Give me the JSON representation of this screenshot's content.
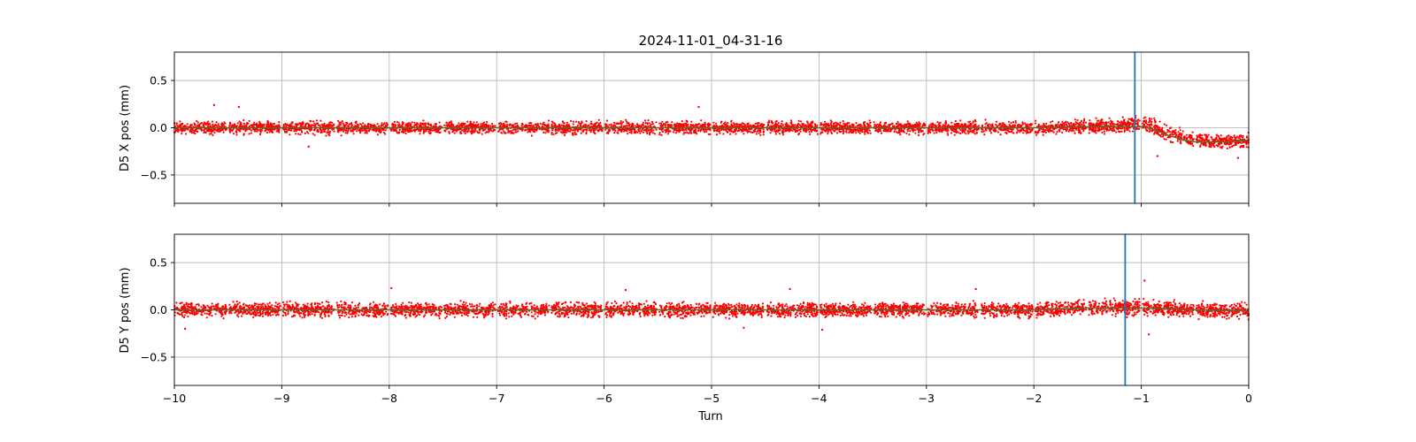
{
  "chart_data": [
    {
      "type": "scatter",
      "title": "2024-11-01_04-31-16",
      "xlabel": "",
      "ylabel": "D5 X pos (mm)",
      "xlim": [
        -10,
        0
      ],
      "ylim": [
        -0.8,
        0.8
      ],
      "grid": true,
      "xticks": [
        -10,
        -9,
        -8,
        -7,
        -6,
        -5,
        -4,
        -3,
        -2,
        -1,
        0
      ],
      "yticks": [
        -0.5,
        0.0,
        0.5
      ],
      "ytick_labels": [
        "−0.5",
        "0.0",
        "0.5"
      ],
      "scatter_color": "#ff0000",
      "trend_color": "#556b2f",
      "vline_color": "#1f77b4",
      "vline_x": -1.06,
      "scatter_envelope": [
        {
          "x": -10.0,
          "center": 0.0,
          "spread": 0.08
        },
        {
          "x": -2.0,
          "center": 0.0,
          "spread": 0.08
        },
        {
          "x": -1.5,
          "center": 0.01,
          "spread": 0.09
        },
        {
          "x": -1.2,
          "center": 0.02,
          "spread": 0.09
        },
        {
          "x": -1.0,
          "center": 0.05,
          "spread": 0.1
        },
        {
          "x": -0.9,
          "center": 0.02,
          "spread": 0.1
        },
        {
          "x": -0.75,
          "center": -0.06,
          "spread": 0.1
        },
        {
          "x": -0.55,
          "center": -0.13,
          "spread": 0.09
        },
        {
          "x": -0.3,
          "center": -0.15,
          "spread": 0.09
        },
        {
          "x": 0.0,
          "center": -0.14,
          "spread": 0.09
        }
      ],
      "trend": [
        {
          "x": -10.0,
          "y": 0.0
        },
        {
          "x": -2.0,
          "y": 0.0
        },
        {
          "x": -1.5,
          "y": 0.01
        },
        {
          "x": -1.0,
          "y": 0.01
        },
        {
          "x": -0.9,
          "y": -0.01
        },
        {
          "x": -0.75,
          "y": -0.08
        },
        {
          "x": -0.6,
          "y": -0.13
        },
        {
          "x": -0.5,
          "y": -0.15
        },
        {
          "x": -0.2,
          "y": -0.15
        },
        {
          "x": 0.0,
          "y": -0.13
        }
      ],
      "outliers": [
        {
          "x": -9.63,
          "y": 0.24
        },
        {
          "x": -9.4,
          "y": 0.22
        },
        {
          "x": -5.12,
          "y": 0.22
        },
        {
          "x": -8.75,
          "y": -0.2
        },
        {
          "x": -0.85,
          "y": -0.3
        },
        {
          "x": -0.1,
          "y": -0.32
        }
      ],
      "gaps": [
        -9.5,
        -9.0,
        -8.5,
        -8.0,
        -7.5,
        -7.0,
        -6.5,
        -6.0,
        -5.5,
        -5.0,
        -4.5,
        -4.0,
        -3.5,
        -3.0,
        -2.5,
        -2.0,
        -1.5,
        -1.0,
        -0.5
      ]
    },
    {
      "type": "scatter",
      "title": "",
      "xlabel": "Turn",
      "ylabel": "D5 Y pos (mm)",
      "xlim": [
        -10,
        0
      ],
      "ylim": [
        -0.8,
        0.8
      ],
      "grid": true,
      "xticks": [
        -10,
        -9,
        -8,
        -7,
        -6,
        -5,
        -4,
        -3,
        -2,
        -1,
        0
      ],
      "xtick_labels": [
        "−10",
        "−9",
        "−8",
        "−7",
        "−6",
        "−5",
        "−4",
        "−3",
        "−2",
        "−1",
        "0"
      ],
      "yticks": [
        -0.5,
        0.0,
        0.5
      ],
      "ytick_labels": [
        "−0.5",
        "0.0",
        "0.5"
      ],
      "scatter_color": "#ff0000",
      "trend_color": "#556b2f",
      "vline_color": "#1f77b4",
      "vline_x": -1.15,
      "scatter_envelope": [
        {
          "x": -10.0,
          "center": 0.0,
          "spread": 0.09
        },
        {
          "x": -2.0,
          "center": 0.0,
          "spread": 0.09
        },
        {
          "x": -1.5,
          "center": 0.02,
          "spread": 0.1
        },
        {
          "x": -1.0,
          "center": 0.02,
          "spread": 0.1
        },
        {
          "x": -0.5,
          "center": 0.0,
          "spread": 0.09
        },
        {
          "x": 0.0,
          "center": -0.01,
          "spread": 0.09
        }
      ],
      "trend": [
        {
          "x": -10.0,
          "y": 0.0
        },
        {
          "x": -2.0,
          "y": 0.0
        },
        {
          "x": -1.5,
          "y": 0.02
        },
        {
          "x": -1.0,
          "y": 0.02
        },
        {
          "x": -0.5,
          "y": 0.0
        },
        {
          "x": 0.0,
          "y": -0.01
        }
      ],
      "outliers": [
        {
          "x": -7.98,
          "y": 0.23
        },
        {
          "x": -5.8,
          "y": 0.21
        },
        {
          "x": -4.27,
          "y": 0.22
        },
        {
          "x": -2.54,
          "y": 0.22
        },
        {
          "x": -0.97,
          "y": 0.31
        },
        {
          "x": -0.93,
          "y": -0.26
        },
        {
          "x": -9.9,
          "y": -0.2
        },
        {
          "x": -4.7,
          "y": -0.19
        },
        {
          "x": -3.97,
          "y": -0.21
        }
      ],
      "gaps": [
        -9.5,
        -9.0,
        -8.5,
        -8.0,
        -7.5,
        -7.0,
        -6.5,
        -6.0,
        -5.5,
        -5.0,
        -4.5,
        -4.0,
        -3.5,
        -3.0,
        -2.5,
        -2.0,
        -1.5,
        -1.0,
        -0.5
      ]
    }
  ]
}
